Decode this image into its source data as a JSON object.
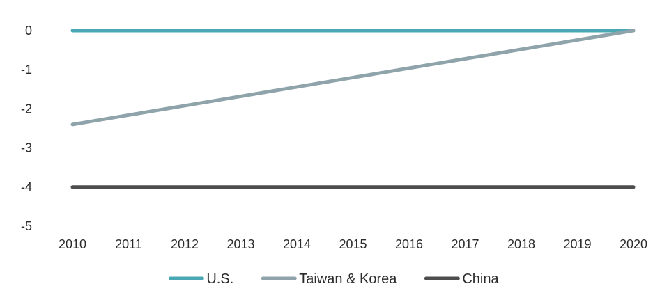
{
  "chart_data": {
    "type": "line",
    "x": [
      2010,
      2011,
      2012,
      2013,
      2014,
      2015,
      2016,
      2017,
      2018,
      2019,
      2020
    ],
    "x_tick_labels": [
      "2010",
      "2011",
      "2012",
      "2013",
      "2014",
      "2015",
      "2016",
      "2017",
      "2018",
      "2019",
      "2020"
    ],
    "y_tick_labels": [
      "0",
      "-1",
      "-2",
      "-3",
      "-4",
      "-5"
    ],
    "y_ticks": [
      0,
      -1,
      -2,
      -3,
      -4,
      -5
    ],
    "ylim": [
      -5,
      0
    ],
    "xlim": [
      2010,
      2020
    ],
    "grid": false,
    "title": "",
    "xlabel": "",
    "ylabel": "",
    "legend_position": "bottom",
    "series": [
      {
        "name": "U.S.",
        "color": "#4aa8b4",
        "x": [
          2010,
          2020
        ],
        "values": [
          0,
          0
        ]
      },
      {
        "name": "Taiwan & Korea",
        "color": "#8fa3ab",
        "x": [
          2010,
          2020
        ],
        "values": [
          -2.4,
          0
        ]
      },
      {
        "name": "China",
        "color": "#4d4d4d",
        "x": [
          2010,
          2020
        ],
        "values": [
          -4,
          -4
        ]
      }
    ]
  }
}
